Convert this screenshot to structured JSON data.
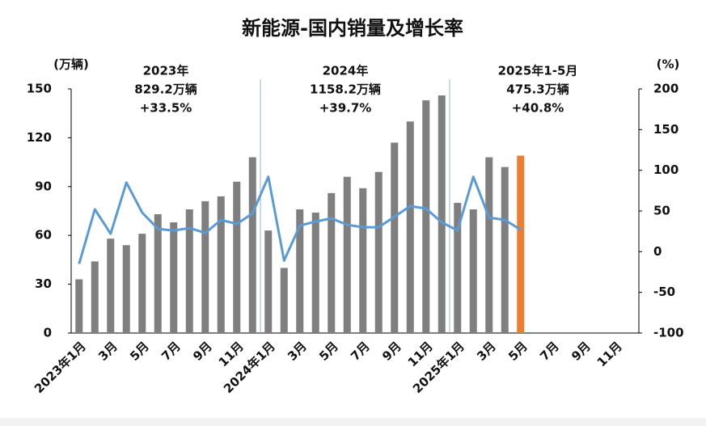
{
  "chart_data": {
    "type": "bar-line",
    "title": "新能源-国内销量及增长率",
    "y_label": "(万辆)",
    "y2_label": "(%)",
    "categories": [
      "2023年1月",
      null,
      "3月",
      null,
      "5月",
      null,
      "7月",
      null,
      "9月",
      null,
      "11月",
      null,
      "2024年1月",
      null,
      "3月",
      null,
      "5月",
      null,
      "7月",
      null,
      "9月",
      null,
      "11月",
      null,
      "2025年1月",
      null,
      "3月",
      null,
      "5月",
      null,
      "7月",
      null,
      "9月",
      null,
      "11月",
      null
    ],
    "series": [
      {
        "type": "bar",
        "color": "#7f7f7f",
        "colors": [
          "#7f7f7f",
          "#7f7f7f",
          "#7f7f7f",
          "#7f7f7f",
          "#7f7f7f",
          "#7f7f7f",
          "#7f7f7f",
          "#7f7f7f",
          "#7f7f7f",
          "#7f7f7f",
          "#7f7f7f",
          "#7f7f7f",
          "#7f7f7f",
          "#7f7f7f",
          "#7f7f7f",
          "#7f7f7f",
          "#7f7f7f",
          "#7f7f7f",
          "#7f7f7f",
          "#7f7f7f",
          "#7f7f7f",
          "#7f7f7f",
          "#7f7f7f",
          "#7f7f7f",
          "#7f7f7f",
          "#7f7f7f",
          "#7f7f7f",
          "#7f7f7f",
          "#ed7d31"
        ],
        "values": [
          33,
          44,
          58,
          54,
          61,
          73,
          68,
          76,
          81,
          84,
          93,
          108,
          63,
          40,
          76,
          74,
          86,
          96,
          89,
          99,
          117,
          130,
          143,
          146,
          80,
          76,
          108,
          102,
          109,
          null,
          null,
          null,
          null,
          null,
          null,
          null
        ]
      },
      {
        "type": "line",
        "color": "#5b9bd5",
        "axis": "y2",
        "values": [
          -15,
          52,
          22,
          85,
          48,
          28,
          26,
          29,
          23,
          39,
          34,
          47,
          92,
          -11,
          32,
          37,
          41,
          33,
          30,
          30,
          43,
          56,
          53,
          36,
          26,
          92,
          42,
          39,
          27,
          null,
          null,
          null,
          null,
          null,
          null,
          null
        ]
      }
    ],
    "ylim": [
      0,
      150
    ],
    "yticks": [
      0,
      30,
      60,
      90,
      120,
      150
    ],
    "y2lim": [
      -100,
      200
    ],
    "y2ticks": [
      -100,
      -50,
      0,
      50,
      100,
      150,
      200
    ],
    "annotations": [
      {
        "lines": [
          "2023年",
          "829.2万辆",
          "+33.5%"
        ]
      },
      {
        "lines": [
          "2024年",
          "1158.2万辆",
          "+39.7%"
        ]
      },
      {
        "lines": [
          "2025年1-5月",
          "475.3万辆",
          "+40.8%"
        ]
      }
    ]
  }
}
